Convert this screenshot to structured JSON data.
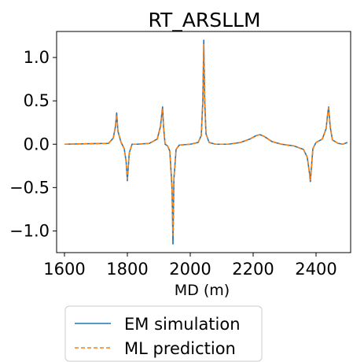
{
  "chart_data": {
    "type": "line",
    "title": "RT_ARSLLM",
    "xlabel": "MD (m)",
    "ylabel": "",
    "xlim": [
      1575,
      2510
    ],
    "ylim": [
      -1.25,
      1.3
    ],
    "xticks": [
      1600,
      1800,
      2000,
      2200,
      2400
    ],
    "xtick_labels": [
      "1600",
      "1800",
      "2000",
      "2200",
      "2400"
    ],
    "yticks": [
      -1.0,
      -0.5,
      0.0,
      0.5,
      1.0
    ],
    "ytick_labels": [
      "−1.0",
      "−0.5",
      "0.0",
      "0.5",
      "1.0"
    ],
    "grid": false,
    "legend": "below",
    "series": [
      {
        "name": "EM simulation",
        "color": "#1f77b4",
        "style": "solid",
        "x": [
          1600,
          1740,
          1755,
          1762,
          1766,
          1770,
          1780,
          1790,
          1796,
          1800,
          1806,
          1815,
          1830,
          1870,
          1895,
          1905,
          1912,
          1915,
          1920,
          1928,
          1935,
          1942,
          1945,
          1948,
          1955,
          1965,
          2000,
          2025,
          2035,
          2040,
          2043,
          2046,
          2050,
          2060,
          2080,
          2120,
          2160,
          2190,
          2210,
          2222,
          2235,
          2260,
          2290,
          2330,
          2360,
          2372,
          2378,
          2382,
          2385,
          2390,
          2400,
          2420,
          2432,
          2437,
          2440,
          2445,
          2452,
          2470,
          2485,
          2500
        ],
        "y": [
          0.0,
          0.01,
          0.07,
          0.2,
          0.36,
          0.15,
          0.02,
          -0.05,
          -0.2,
          -0.42,
          -0.1,
          0.0,
          0.0,
          0.01,
          0.06,
          0.2,
          0.43,
          0.2,
          0.0,
          -0.02,
          -0.08,
          -0.5,
          -1.15,
          -0.4,
          -0.06,
          -0.01,
          0.0,
          0.02,
          0.1,
          0.5,
          1.2,
          0.5,
          0.12,
          0.02,
          0.0,
          0.0,
          0.02,
          0.06,
          0.1,
          0.11,
          0.09,
          0.03,
          0.0,
          -0.02,
          -0.06,
          -0.15,
          -0.3,
          -0.43,
          -0.28,
          -0.05,
          0.02,
          0.06,
          0.18,
          0.35,
          0.43,
          0.2,
          0.05,
          0.01,
          0.0,
          0.02
        ]
      },
      {
        "name": "ML prediction",
        "color": "#ff7f0e",
        "style": "dashed",
        "x": [
          1600,
          1740,
          1755,
          1762,
          1766,
          1770,
          1780,
          1790,
          1796,
          1800,
          1806,
          1815,
          1830,
          1870,
          1895,
          1905,
          1912,
          1915,
          1920,
          1928,
          1935,
          1942,
          1945,
          1948,
          1955,
          1965,
          2000,
          2025,
          2035,
          2040,
          2043,
          2046,
          2050,
          2060,
          2080,
          2120,
          2160,
          2190,
          2210,
          2222,
          2235,
          2260,
          2290,
          2330,
          2360,
          2372,
          2378,
          2382,
          2385,
          2390,
          2400,
          2420,
          2432,
          2437,
          2440,
          2445,
          2452,
          2470,
          2485,
          2500
        ],
        "y": [
          0.0,
          0.01,
          0.07,
          0.2,
          0.34,
          0.15,
          0.02,
          -0.05,
          -0.2,
          -0.4,
          -0.1,
          0.0,
          0.0,
          0.01,
          0.06,
          0.2,
          0.41,
          0.2,
          0.0,
          -0.02,
          -0.08,
          -0.5,
          -1.05,
          -0.4,
          -0.06,
          -0.01,
          0.0,
          0.02,
          0.1,
          0.5,
          1.15,
          0.5,
          0.12,
          0.02,
          0.0,
          0.0,
          0.02,
          0.06,
          0.1,
          0.11,
          0.09,
          0.03,
          0.0,
          -0.02,
          -0.06,
          -0.15,
          -0.3,
          -0.41,
          -0.28,
          -0.05,
          0.02,
          0.06,
          0.18,
          0.35,
          0.42,
          0.2,
          0.05,
          0.01,
          0.0,
          0.02
        ]
      }
    ]
  }
}
